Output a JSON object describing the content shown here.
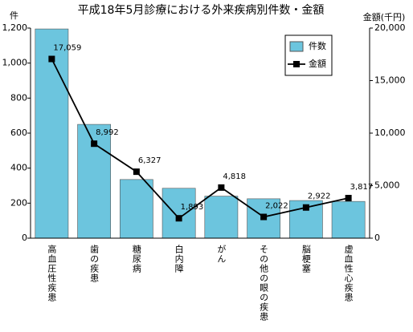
{
  "chart_data": {
    "type": "bar",
    "title": "平成18年5月診療における外来疾病別件数・金額",
    "y_label": "件",
    "y2_label": "金額(千円)",
    "categories": [
      "高血圧性疾患",
      "歯の疾患",
      "糖尿病",
      "白内障",
      "がん",
      "その他の眼の疾患",
      "脳梗塞",
      "虚血性心疾患"
    ],
    "series": [
      {
        "name": "件数",
        "type": "bar",
        "color": "#6cc5de",
        "values": [
          1195,
          650,
          335,
          285,
          240,
          225,
          215,
          210
        ]
      },
      {
        "name": "金額",
        "type": "line",
        "axis": "y2",
        "color": "#000000",
        "values": [
          17059,
          8992,
          6327,
          1893,
          4818,
          2022,
          2922,
          3817
        ],
        "value_labels": [
          "17,059",
          "8,992",
          "6,327",
          "1,893",
          "4,818",
          "2,022",
          "2,922",
          "3,817"
        ]
      }
    ],
    "ylim": [
      0,
      1200
    ],
    "yticks": [
      0,
      200,
      400,
      600,
      800,
      {
        "value": 1000,
        "label": "1,000"
      },
      {
        "value": 1200,
        "label": "1,200"
      }
    ],
    "y2lim": [
      0,
      20000
    ],
    "y2ticks": [
      0,
      {
        "value": 5000,
        "label": "5,000"
      },
      {
        "value": 10000,
        "label": "10,000"
      },
      {
        "value": 15000,
        "label": "15,000"
      },
      {
        "value": 20000,
        "label": "20,000"
      }
    ],
    "legend": "upper right"
  }
}
